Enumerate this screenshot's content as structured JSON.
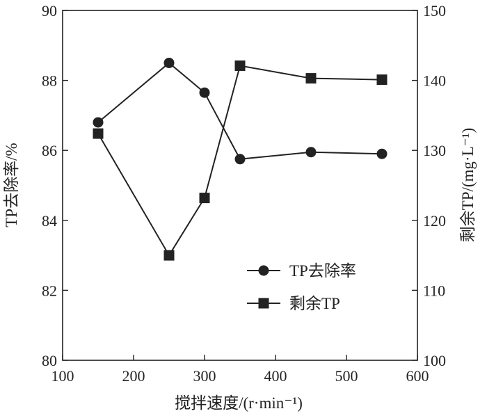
{
  "chart_data": {
    "type": "line",
    "x": [
      150,
      250,
      300,
      350,
      450,
      550
    ],
    "xlabel": "搅拌速度/(r·min⁻¹)",
    "xlim": [
      100,
      600
    ],
    "xticks": [
      100,
      200,
      300,
      400,
      500,
      600
    ],
    "ylabel_left": "TP去除率/%",
    "ylim_left": [
      80,
      90
    ],
    "yticks_left": [
      80,
      82,
      84,
      86,
      88,
      90
    ],
    "ylabel_right": "剩余TP/(mg·L⁻¹)",
    "ylim_right": [
      100,
      150
    ],
    "yticks_right": [
      100,
      110,
      120,
      130,
      140,
      150
    ],
    "series": [
      {
        "name": "TP去除率",
        "axis": "left",
        "marker": "circle",
        "values": [
          86.8,
          88.5,
          87.65,
          85.75,
          85.95,
          85.9
        ]
      },
      {
        "name": "剩余TP",
        "axis": "right",
        "marker": "square",
        "values": [
          132.4,
          115.0,
          123.2,
          142.1,
          140.3,
          140.1
        ]
      }
    ],
    "legend_position": "lower-right inside plot",
    "grid": false,
    "colors": {
      "line": "#222222",
      "marker": "#222222",
      "axis": "#222222"
    }
  }
}
